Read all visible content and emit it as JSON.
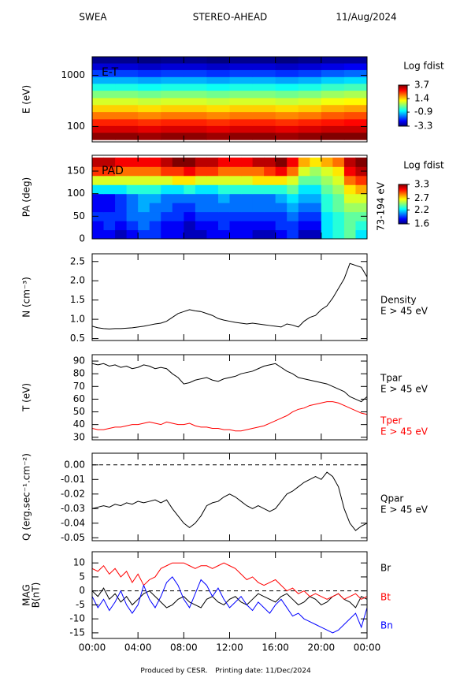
{
  "header": {
    "left": "SWEA",
    "center": "STEREO-AHEAD",
    "right": "11/Aug/2024"
  },
  "footer": {
    "produced": "Produced by CESR.",
    "printed": "Printing date: 11/Dec/2024"
  },
  "time": {
    "x": [
      0,
      0.5,
      1,
      1.5,
      2,
      2.5,
      3,
      3.5,
      4,
      4.5,
      5,
      5.5,
      6,
      6.5,
      7,
      7.5,
      8,
      8.5,
      9,
      9.5,
      10,
      10.5,
      11,
      11.5,
      12,
      12.5,
      13,
      13.5,
      14,
      14.5,
      15,
      15.5,
      16,
      16.5,
      17,
      17.5,
      18,
      18.5,
      19,
      19.5,
      20,
      20.5,
      21,
      21.5,
      22,
      22.5,
      23,
      23.5,
      24
    ],
    "xlim": [
      0,
      24
    ],
    "xticks": [
      {
        "value": 0,
        "label": "00:00"
      },
      {
        "value": 4,
        "label": "04:00"
      },
      {
        "value": 8,
        "label": "08:00"
      },
      {
        "value": 12,
        "label": "12:00"
      },
      {
        "value": 16,
        "label": "16:00"
      },
      {
        "value": 20,
        "label": "20:00"
      },
      {
        "value": 24,
        "label": "00:00"
      }
    ]
  },
  "chart_data": [
    {
      "type": "heatmap",
      "y_label": "E (eV)",
      "annotation": "E-T",
      "colorbar_title": "Log fdist",
      "log_y": true,
      "ylim": [
        50,
        2300
      ],
      "yticks": [
        100,
        1000
      ],
      "zlim": [
        -3.3,
        3.7
      ],
      "zticks": [
        3.7,
        1.4,
        -0.9,
        -3.3
      ],
      "x": [
        1,
        3,
        5,
        7,
        9,
        11,
        13,
        15,
        17,
        19,
        21,
        23
      ],
      "y": [
        65,
        90,
        120,
        165,
        230,
        310,
        430,
        600,
        800,
        1100,
        1500,
        2000
      ],
      "z": [
        [
          3.6,
          3.6,
          3.5,
          3.6,
          3.6,
          3.5,
          3.6,
          3.6,
          3.5,
          3.6,
          3.7,
          3.7
        ],
        [
          3.1,
          3.1,
          3.0,
          3.1,
          3.1,
          3.0,
          3.1,
          3.1,
          3.0,
          3.1,
          3.2,
          3.2
        ],
        [
          2.6,
          2.6,
          2.5,
          2.6,
          2.6,
          2.5,
          2.6,
          2.6,
          2.5,
          2.6,
          2.7,
          2.8
        ],
        [
          2.0,
          2.0,
          1.9,
          2.0,
          2.0,
          1.9,
          2.0,
          2.0,
          1.9,
          2.0,
          2.2,
          2.3
        ],
        [
          1.4,
          1.4,
          1.3,
          1.4,
          1.4,
          1.3,
          1.4,
          1.4,
          1.3,
          1.4,
          1.6,
          1.7
        ],
        [
          0.8,
          0.8,
          0.7,
          0.8,
          0.8,
          0.7,
          0.8,
          0.8,
          0.7,
          0.8,
          1.0,
          1.1
        ],
        [
          0.2,
          0.2,
          0.1,
          0.2,
          0.2,
          0.1,
          0.2,
          0.2,
          0.1,
          0.2,
          0.4,
          0.5
        ],
        [
          -0.5,
          -0.5,
          -0.6,
          -0.5,
          -0.5,
          -0.6,
          -0.5,
          -0.5,
          -0.6,
          -0.5,
          -0.3,
          -0.2
        ],
        [
          -1.2,
          -1.2,
          -1.3,
          -1.2,
          -1.2,
          -1.3,
          -1.2,
          -1.2,
          -1.3,
          -1.2,
          -1.0,
          -0.9
        ],
        [
          -2.0,
          -2.0,
          -2.1,
          -2.0,
          -2.0,
          -2.1,
          -2.0,
          -2.0,
          -2.1,
          -2.0,
          -1.8,
          -1.7
        ],
        [
          -2.7,
          -2.7,
          -2.8,
          -2.7,
          -2.7,
          -2.8,
          -2.7,
          -2.7,
          -2.8,
          -2.7,
          -2.6,
          -2.5
        ],
        [
          -3.2,
          -3.2,
          -3.3,
          -3.2,
          -3.2,
          -3.3,
          -3.2,
          -3.2,
          -3.3,
          -3.2,
          -3.1,
          -3.1
        ]
      ]
    },
    {
      "type": "heatmap",
      "y_label": "PA (deg)",
      "annotation": "PAD",
      "colorbar_title": "Log fdist",
      "right_label": "73-194 eV",
      "ylim": [
        0,
        185
      ],
      "yticks": [
        0,
        50,
        100,
        150
      ],
      "zlim": [
        1.6,
        3.3
      ],
      "zticks": [
        3.3,
        2.7,
        2.2,
        1.6
      ],
      "x": [
        0.5,
        1.5,
        2.5,
        3.5,
        4.5,
        5.5,
        6.5,
        7.5,
        8.5,
        9.5,
        10.5,
        11.5,
        12.5,
        13.5,
        14.5,
        15.5,
        16.5,
        17.5,
        18.5,
        19.5,
        20.5,
        21.5,
        22.5,
        23.5
      ],
      "y": [
        10,
        30,
        50,
        70,
        90,
        110,
        130,
        150,
        170
      ],
      "z": [
        [
          1.8,
          1.8,
          1.7,
          1.8,
          1.9,
          1.9,
          1.8,
          1.8,
          1.7,
          1.7,
          1.8,
          1.8,
          1.8,
          1.8,
          1.7,
          1.7,
          1.8,
          1.9,
          1.7,
          1.7,
          2.2,
          2.3,
          2.4,
          2.2
        ],
        [
          1.8,
          1.9,
          1.8,
          1.9,
          2.0,
          1.9,
          1.8,
          1.8,
          1.7,
          1.8,
          1.8,
          1.9,
          1.8,
          1.8,
          1.8,
          1.8,
          1.9,
          1.9,
          1.8,
          1.8,
          2.2,
          2.3,
          2.4,
          2.3
        ],
        [
          1.9,
          1.9,
          1.9,
          2.0,
          2.0,
          2.0,
          1.9,
          1.9,
          1.8,
          1.9,
          1.9,
          1.9,
          1.9,
          1.9,
          1.9,
          1.9,
          1.9,
          2.0,
          1.9,
          1.9,
          2.2,
          2.3,
          2.4,
          2.4
        ],
        [
          1.8,
          1.8,
          1.9,
          2.0,
          2.1,
          2.0,
          2.0,
          1.9,
          1.9,
          2.0,
          2.0,
          2.0,
          2.0,
          2.0,
          2.0,
          2.0,
          2.0,
          2.1,
          2.0,
          2.0,
          2.3,
          2.4,
          2.5,
          2.5
        ],
        [
          1.8,
          1.8,
          1.9,
          2.0,
          2.1,
          2.1,
          2.0,
          2.0,
          2.0,
          2.0,
          2.0,
          2.1,
          2.0,
          2.0,
          2.0,
          2.0,
          2.1,
          2.2,
          2.1,
          2.1,
          2.3,
          2.4,
          2.6,
          2.6
        ],
        [
          2.2,
          2.2,
          2.2,
          2.3,
          2.3,
          2.3,
          2.2,
          2.2,
          2.3,
          2.2,
          2.2,
          2.3,
          2.3,
          2.3,
          2.3,
          2.3,
          2.3,
          2.4,
          2.2,
          2.2,
          2.4,
          2.5,
          2.7,
          2.8
        ],
        [
          2.6,
          2.6,
          2.6,
          2.6,
          2.6,
          2.6,
          2.6,
          2.7,
          2.7,
          2.6,
          2.6,
          2.6,
          2.6,
          2.6,
          2.7,
          2.7,
          2.7,
          2.6,
          2.4,
          2.4,
          2.5,
          2.6,
          2.9,
          3.0
        ],
        [
          3.0,
          3.0,
          2.9,
          2.9,
          2.9,
          2.9,
          3.0,
          3.0,
          3.1,
          3.0,
          3.0,
          2.9,
          2.9,
          2.9,
          2.9,
          3.0,
          3.1,
          2.9,
          2.6,
          2.5,
          2.6,
          2.7,
          3.1,
          3.2
        ],
        [
          3.2,
          3.2,
          3.1,
          3.1,
          3.1,
          3.1,
          3.2,
          3.3,
          3.3,
          3.2,
          3.2,
          3.1,
          3.1,
          3.1,
          3.2,
          3.2,
          3.3,
          3.1,
          2.8,
          2.7,
          2.8,
          2.9,
          3.2,
          3.3
        ]
      ]
    },
    {
      "type": "line",
      "y_label": "N (cm⁻³)",
      "ylim": [
        0.45,
        2.7
      ],
      "yticks": [
        0.5,
        {
          "value": 1,
          "label": "1.0"
        },
        1.5,
        {
          "value": 2,
          "label": "2.0"
        },
        2.5
      ],
      "series": [
        {
          "name": "Density",
          "note": "E > 45 eV",
          "color": "#000000",
          "values": [
            0.82,
            0.78,
            0.76,
            0.75,
            0.76,
            0.76,
            0.77,
            0.78,
            0.8,
            0.82,
            0.85,
            0.88,
            0.9,
            0.95,
            1.05,
            1.15,
            1.2,
            1.25,
            1.22,
            1.2,
            1.15,
            1.1,
            1.02,
            0.98,
            0.95,
            0.92,
            0.9,
            0.88,
            0.9,
            0.88,
            0.86,
            0.84,
            0.82,
            0.8,
            0.88,
            0.85,
            0.8,
            0.95,
            1.05,
            1.1,
            1.25,
            1.35,
            1.55,
            1.8,
            2.05,
            2.45,
            2.4,
            2.35,
            2.1
          ]
        }
      ]
    },
    {
      "type": "line",
      "y_label": "T (eV)",
      "ylim": [
        28,
        95
      ],
      "yticks": [
        30,
        40,
        50,
        60,
        70,
        80,
        90
      ],
      "series": [
        {
          "name": "Tpar",
          "note": "E > 45 eV",
          "color": "#000000",
          "values": [
            88,
            87,
            88,
            86,
            87,
            85,
            86,
            84,
            85,
            87,
            86,
            84,
            85,
            84,
            80,
            77,
            72,
            73,
            75,
            76,
            77,
            75,
            74,
            76,
            77,
            78,
            80,
            81,
            82,
            84,
            86,
            87,
            88,
            85,
            82,
            80,
            77,
            76,
            75,
            74,
            73,
            72,
            70,
            68,
            66,
            62,
            60,
            58,
            62
          ]
        },
        {
          "name": "Tper",
          "note": "E > 45 eV",
          "color": "#ff0000",
          "values": [
            37,
            36,
            36,
            37,
            38,
            38,
            39,
            40,
            40,
            41,
            42,
            41,
            40,
            42,
            41,
            40,
            40,
            41,
            39,
            38,
            38,
            37,
            37,
            36,
            36,
            35,
            35,
            36,
            37,
            38,
            39,
            41,
            43,
            45,
            47,
            50,
            52,
            53,
            55,
            56,
            57,
            58,
            58,
            57,
            55,
            53,
            51,
            49,
            48
          ]
        }
      ]
    },
    {
      "type": "line",
      "y_label": "Q (erg.sec⁻¹.cm⁻²)",
      "ylim": [
        -0.052,
        0.008
      ],
      "reference_line": 0,
      "yticks": [
        {
          "value": 0,
          "label": "0.00"
        },
        {
          "value": -0.01,
          "label": "-0.01"
        },
        {
          "value": -0.02,
          "label": "-0.02"
        },
        {
          "value": -0.03,
          "label": "-0.03"
        },
        {
          "value": -0.04,
          "label": "-0.04"
        },
        {
          "value": -0.05,
          "label": "-0.05"
        }
      ],
      "series": [
        {
          "name": "Qpar",
          "note": "E > 45 eV",
          "color": "#000000",
          "values": [
            -0.03,
            -0.029,
            -0.028,
            -0.029,
            -0.027,
            -0.028,
            -0.026,
            -0.027,
            -0.025,
            -0.026,
            -0.025,
            -0.024,
            -0.026,
            -0.024,
            -0.03,
            -0.035,
            -0.04,
            -0.043,
            -0.04,
            -0.035,
            -0.028,
            -0.026,
            -0.025,
            -0.022,
            -0.02,
            -0.022,
            -0.025,
            -0.028,
            -0.03,
            -0.028,
            -0.03,
            -0.032,
            -0.03,
            -0.025,
            -0.02,
            -0.018,
            -0.015,
            -0.012,
            -0.01,
            -0.008,
            -0.01,
            -0.005,
            -0.008,
            -0.015,
            -0.03,
            -0.04,
            -0.045,
            -0.042,
            -0.04
          ]
        }
      ]
    },
    {
      "type": "line",
      "y_label": [
        "MAG",
        "B(nT)"
      ],
      "ylim": [
        -17,
        14
      ],
      "reference_line": 0,
      "yticks": [
        -15,
        -10,
        -5,
        0,
        5,
        10
      ],
      "series": [
        {
          "name": "Br",
          "color": "#000000",
          "values": [
            0,
            -2,
            1,
            -3,
            -1,
            -4,
            -2,
            -5,
            -3,
            -1,
            0,
            -2,
            -4,
            -6,
            -5,
            -3,
            -2,
            -4,
            -5,
            -6,
            -3,
            -2,
            -4,
            -5,
            -3,
            -2,
            -4,
            -5,
            -3,
            -1,
            -2,
            -3,
            -4,
            -2,
            -1,
            -3,
            -5,
            -4,
            -2,
            -3,
            -5,
            -4,
            -2,
            -1,
            -3,
            -4,
            -6,
            -2,
            -3
          ]
        },
        {
          "name": "Bt",
          "color": "#ff0000",
          "values": [
            8,
            7,
            9,
            6,
            8,
            5,
            7,
            3,
            6,
            2,
            4,
            5,
            8,
            9,
            10,
            10,
            10,
            9,
            8,
            9,
            9,
            8,
            9,
            10,
            9,
            8,
            6,
            4,
            5,
            3,
            2,
            3,
            4,
            2,
            0,
            1,
            -1,
            0,
            -2,
            -1,
            -2,
            -3,
            -2,
            -1,
            -3,
            -2,
            -1,
            -3,
            -2
          ]
        },
        {
          "name": "Bn",
          "color": "#0000ff",
          "values": [
            -2,
            -6,
            -3,
            -7,
            -4,
            0,
            -5,
            -8,
            -5,
            2,
            -3,
            -6,
            -2,
            3,
            5,
            2,
            -3,
            -6,
            -1,
            4,
            2,
            -2,
            1,
            -3,
            -6,
            -4,
            -2,
            -5,
            -7,
            -4,
            -6,
            -8,
            -5,
            -3,
            -6,
            -9,
            -8,
            -10,
            -11,
            -12,
            -13,
            -14,
            -15,
            -14,
            -12,
            -10,
            -8,
            -13,
            -6
          ]
        }
      ]
    }
  ]
}
